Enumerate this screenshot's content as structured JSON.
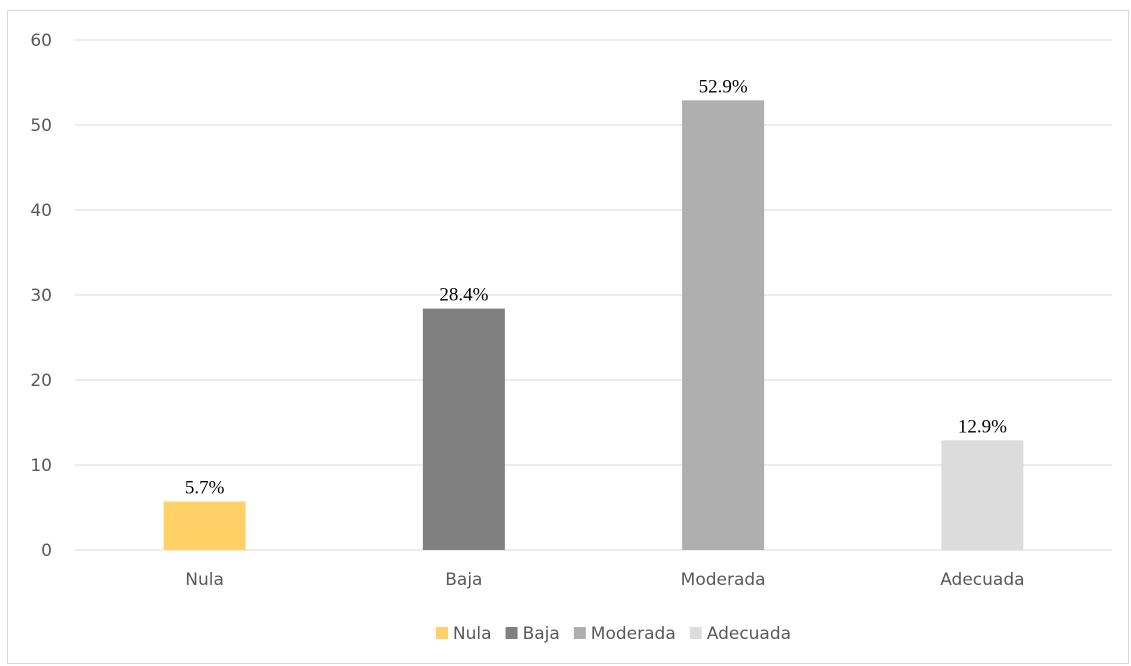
{
  "chart_data": {
    "type": "bar",
    "categories": [
      "Nula",
      "Baja",
      "Moderada",
      "Adecuada"
    ],
    "values": [
      5.7,
      28.4,
      52.9,
      12.9
    ],
    "data_labels": [
      "5.7%",
      "28.4%",
      "52.9%",
      "12.9%"
    ],
    "colors": [
      "#FFD166",
      "#808080",
      "#AFAFAF",
      "#DCDCDC"
    ],
    "ylim": [
      0,
      60
    ],
    "yticks": [
      0,
      10,
      20,
      30,
      40,
      50,
      60
    ],
    "ytick_labels": [
      "0",
      "10",
      "20",
      "30",
      "40",
      "50",
      "60"
    ],
    "grid": true,
    "legend_position": "bottom",
    "legend": [
      "Nula",
      "Baja",
      "Moderada",
      "Adecuada"
    ],
    "title": "",
    "xlabel": "",
    "ylabel": ""
  }
}
